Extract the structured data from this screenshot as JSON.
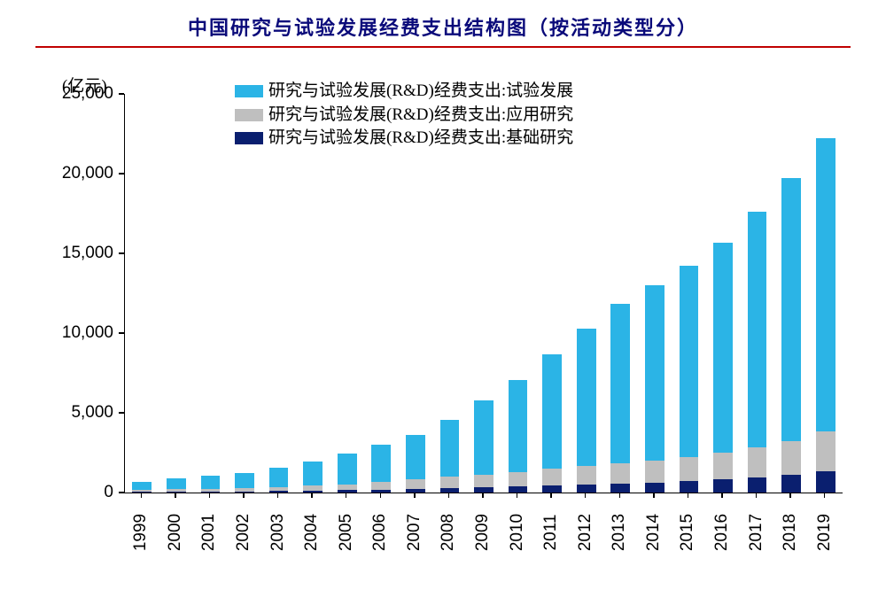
{
  "chart": {
    "type": "stacked-bar",
    "title": "中国研究与试验发展经费支出结构图（按活动类型分）",
    "title_fontsize": 22,
    "title_color": "#0a0a7a",
    "title_underline_color": "#c00000",
    "y_unit_label": "(亿元)",
    "y_unit_fontsize": 19,
    "ylim": [
      0,
      25000
    ],
    "ytick_step": 5000,
    "yticks": [
      "0",
      "5,000",
      "10,000",
      "15,000",
      "20,000",
      "25,000"
    ],
    "ytick_fontsize": 19,
    "xtick_fontsize": 19,
    "background_color": "#ffffff",
    "axis_color": "#000000",
    "bar_width_ratio": 0.56,
    "categories": [
      "1999",
      "2000",
      "2001",
      "2002",
      "2003",
      "2004",
      "2005",
      "2006",
      "2007",
      "2008",
      "2009",
      "2010",
      "2011",
      "2012",
      "2013",
      "2014",
      "2015",
      "2016",
      "2017",
      "2018",
      "2019"
    ],
    "series": [
      {
        "key": "basic",
        "label": "研究与试验发展(R&D)经费支出:基础研究",
        "color": "#0a1f6f",
        "values": [
          40,
          50,
          60,
          80,
          100,
          130,
          150,
          180,
          220,
          280,
          320,
          370,
          430,
          500,
          560,
          620,
          720,
          830,
          970,
          1100,
          1350
        ]
      },
      {
        "key": "applied",
        "label": "研究与试验发展(R&D)经费支出:应用研究",
        "color": "#bfbfbf",
        "values": [
          130,
          160,
          180,
          210,
          250,
          300,
          370,
          490,
          600,
          700,
          780,
          900,
          1050,
          1170,
          1280,
          1400,
          1530,
          1650,
          1850,
          2100,
          2500
        ]
      },
      {
        "key": "dev",
        "label": "研究与试验发展(R&D)经费支出:试验发展",
        "color": "#2bb4e6",
        "values": [
          510,
          690,
          800,
          950,
          1200,
          1530,
          1900,
          2330,
          2800,
          3600,
          4700,
          5800,
          7200,
          8600,
          10000,
          11000,
          12000,
          13200,
          14800,
          16500,
          18350
        ]
      }
    ],
    "legend": {
      "order": [
        "dev",
        "applied",
        "basic"
      ],
      "fontsize": 19,
      "swatch_w": 32,
      "swatch_h": 14
    }
  }
}
